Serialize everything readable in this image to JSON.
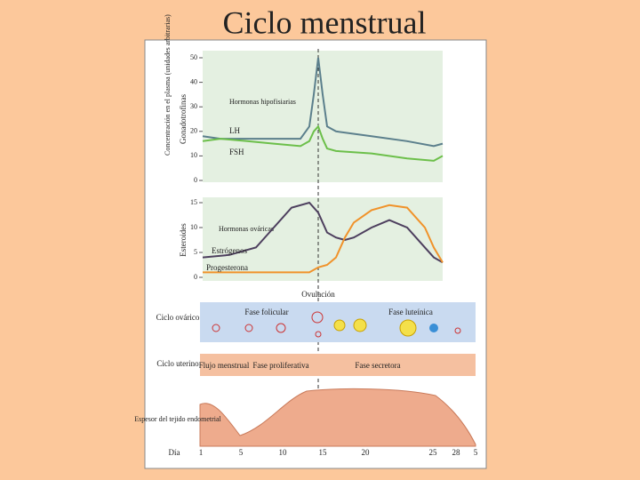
{
  "title": "Ciclo menstrual",
  "axis_label": "Concentración en el plasma (unidades arbitrarias)",
  "chart_data": [
    {
      "type": "line",
      "ylabel": "Gonadotrofinas",
      "annotation": "Hormonas hipofisiarias",
      "x": [
        1,
        3,
        6,
        9,
        12,
        13,
        13.5,
        14,
        14.5,
        15,
        16,
        20,
        24,
        27,
        28
      ],
      "series": [
        {
          "name": "LH",
          "color": "#5b7f8c",
          "values": [
            18,
            17,
            17,
            17,
            17,
            22,
            35,
            50,
            35,
            22,
            20,
            18,
            16,
            14,
            15
          ]
        },
        {
          "name": "FSH",
          "color": "#6cbf4a",
          "values": [
            16,
            17,
            16,
            15,
            14,
            16,
            20,
            22,
            17,
            13,
            12,
            11,
            9,
            8,
            10
          ]
        }
      ],
      "xlim": [
        1,
        28
      ],
      "ylim": [
        0,
        50
      ],
      "yticks": [
        0,
        10,
        20,
        30,
        40,
        50
      ]
    },
    {
      "type": "line",
      "ylabel": "Esteroides",
      "annotation": "Hormonas ováricas",
      "x": [
        1,
        4,
        7,
        9,
        11,
        13,
        14,
        15,
        16,
        17,
        18,
        20,
        22,
        24,
        26,
        27,
        28
      ],
      "series": [
        {
          "name": "Estrógenos",
          "color": "#4d3f5e",
          "values": [
            4,
            4.5,
            6,
            10,
            14,
            15,
            13,
            9,
            8,
            7.5,
            8,
            10,
            11.5,
            10,
            6,
            4,
            3
          ]
        },
        {
          "name": "Progesterona",
          "color": "#f0922a",
          "values": [
            1,
            1,
            1,
            1,
            1,
            1,
            2,
            2.5,
            4,
            8,
            11,
            13.5,
            14.5,
            14,
            10,
            6,
            3
          ]
        }
      ],
      "xlim": [
        1,
        28
      ],
      "ylim": [
        0,
        15
      ],
      "yticks": [
        0,
        5,
        10,
        15
      ]
    }
  ],
  "ovulation": "Ovulación",
  "ovarian": {
    "label": "Ciclo ovárico",
    "phase1": "Fase folicular",
    "phase2": "Fase luteínica"
  },
  "uterine": {
    "label": "Ciclo uterino",
    "phase1": "Flujo menstrual",
    "phase2": "Fase proliferativa",
    "phase3": "Fase secretora"
  },
  "endometrium": "Espesor del tejido endometrial",
  "day_label": "Día",
  "days": [
    "1",
    "5",
    "10",
    "15",
    "20",
    "25",
    "28",
    "5"
  ]
}
